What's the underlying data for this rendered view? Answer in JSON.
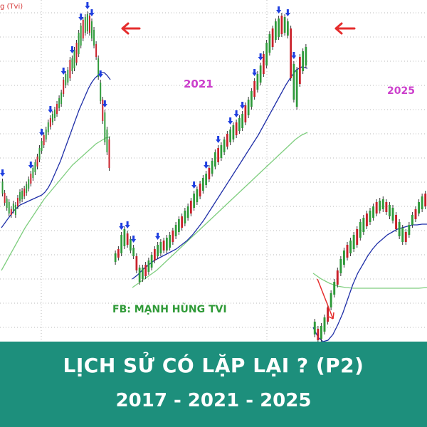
{
  "author_label": "g (Tvi)",
  "watermark": "FB: MẠNH HÙNG TVI",
  "banner": {
    "title": "LỊCH SỬ CÓ LẶP LẠI ? (P2)",
    "subtitle": "2017 - 2021 - 2025",
    "background": "#1d8f7c"
  },
  "colors": {
    "candle_up": "#2e9a3a",
    "candle_down": "#c9202a",
    "ma_short": "#1f2fa8",
    "ma_long": "#7fce7f",
    "marker_arrow": "#1f3fe0",
    "pointer_arrow": "#e52d2d",
    "year_label": "#cc3fcc",
    "grid": "#b8b8b8"
  },
  "chart_data": [
    {
      "type": "candlestick",
      "label": "",
      "title": "",
      "series": [
        {
          "name": "price",
          "values": [
            [
              272,
              255
            ],
            [
              285,
              271
            ],
            [
              292,
              279
            ],
            [
              300,
              284
            ],
            [
              302,
              294
            ],
            [
              296,
              286
            ],
            [
              302,
              288
            ],
            [
              290,
              278
            ],
            [
              282,
              270
            ],
            [
              280,
              268
            ],
            [
              276,
              265
            ],
            [
              271,
              259
            ],
            [
              265,
              252
            ],
            [
              258,
              244
            ],
            [
              250,
              236
            ],
            [
              242,
              228
            ],
            [
              234,
              220
            ],
            [
              224,
              208
            ],
            [
              212,
              198
            ],
            [
              204,
              190
            ],
            [
              196,
              182
            ],
            [
              186,
              172
            ],
            [
              178,
              166
            ],
            [
              172,
              160
            ],
            [
              166,
              154
            ],
            [
              160,
              146
            ],
            [
              152,
              138
            ],
            [
              146,
              130
            ],
            [
              132,
              112
            ],
            [
              120,
              104
            ],
            [
              116,
              98
            ],
            [
              110,
              84
            ],
            [
              100,
              82
            ],
            [
              96,
              70
            ],
            [
              88,
              60
            ],
            [
              76,
              46
            ],
            [
              64,
              36
            ],
            [
              54,
              28
            ],
            [
              46,
              24
            ],
            [
              44,
              20
            ],
            [
              46,
              22
            ],
            [
              54,
              30
            ],
            [
              64,
              42
            ],
            [
              80,
              62
            ],
            [
              108,
              82
            ],
            [
              142,
              116
            ],
            [
              170,
              140
            ],
            [
              200,
              158
            ],
            [
              214,
              182
            ],
            [
              236,
              196
            ]
          ]
        },
        {
          "name": "ma_short",
          "values": [
            320,
            314,
            308,
            302,
            296,
            292,
            288,
            286,
            284,
            282,
            280,
            278,
            276,
            274,
            270,
            264,
            256,
            246,
            236,
            226,
            214,
            202,
            190,
            178,
            166,
            154,
            144,
            134,
            124,
            116,
            110,
            106,
            102,
            102,
            106,
            112
          ]
        },
        {
          "name": "ma_long",
          "values": [
            380,
            368,
            356,
            344,
            332,
            320,
            310,
            300,
            290,
            280,
            272,
            264,
            256,
            248,
            240,
            232,
            226,
            220,
            214,
            208,
            202,
            198,
            194,
            192
          ]
        }
      ]
    },
    {
      "type": "candlestick",
      "label": "2021",
      "title": "",
      "series": [
        {
          "name": "price",
          "values": [
            [
              368,
              356
            ],
            [
              362,
              350
            ],
            [
              356,
              330
            ],
            [
              346,
              322
            ],
            [
              344,
              328
            ],
            [
              352,
              336
            ],
            [
              360,
              348
            ],
            [
              380,
              360
            ],
            [
              396,
              376
            ],
            [
              392,
              376
            ],
            [
              388,
              372
            ],
            [
              382,
              366
            ],
            [
              376,
              358
            ],
            [
              366,
              350
            ],
            [
              360,
              344
            ],
            [
              356,
              340
            ],
            [
              352,
              338
            ],
            [
              352,
              334
            ],
            [
              348,
              330
            ],
            [
              340,
              324
            ],
            [
              332,
              316
            ],
            [
              326,
              308
            ],
            [
              320,
              304
            ],
            [
              314,
              296
            ],
            [
              306,
              290
            ],
            [
              300,
              282
            ],
            [
              292,
              272
            ],
            [
              284,
              266
            ],
            [
              276,
              258
            ],
            [
              268,
              250
            ],
            [
              260,
              244
            ],
            [
              252,
              236
            ],
            [
              244,
              226
            ],
            [
              234,
              214
            ],
            [
              228,
              208
            ],
            [
              222,
              204
            ],
            [
              214,
              196
            ],
            [
              206,
              188
            ],
            [
              200,
              182
            ],
            [
              196,
              176
            ],
            [
              190,
              172
            ],
            [
              184,
              166
            ],
            [
              180,
              160
            ],
            [
              172,
              148
            ],
            [
              162,
              140
            ],
            [
              150,
              128
            ],
            [
              136,
              114
            ],
            [
              126,
              104
            ],
            [
              116,
              92
            ],
            [
              104,
              76
            ],
            [
              92,
              60
            ],
            [
              74,
              48
            ],
            [
              66,
              40
            ],
            [
              56,
              30
            ],
            [
              52,
              26
            ],
            [
              48,
              22
            ],
            [
              46,
              24
            ],
            [
              50,
              30
            ],
            [
              110,
              40
            ],
            [
              140,
              90
            ],
            [
              150,
              98
            ],
            [
              118,
              80
            ],
            [
              100,
              72
            ],
            [
              92,
              66
            ]
          ]
        },
        {
          "name": "ma_short",
          "values": [
            392,
            386,
            378,
            372,
            366,
            362,
            358,
            354,
            350,
            344,
            338,
            330,
            320,
            310,
            298,
            286,
            274,
            262,
            250,
            238,
            226,
            214,
            202,
            190,
            176,
            162,
            148,
            134,
            120,
            108,
            98,
            94,
            96
          ]
        },
        {
          "name": "ma_long",
          "values": [
            404,
            398,
            392,
            386,
            380,
            372,
            364,
            356,
            348,
            340,
            332,
            324,
            316,
            308,
            300,
            292,
            284,
            276,
            268,
            260,
            252,
            244,
            236,
            228,
            220,
            212,
            204,
            196,
            190,
            186
          ]
        }
      ]
    },
    {
      "type": "candlestick",
      "label": "2025",
      "title": "",
      "series": [
        {
          "name": "price",
          "values": [
            [
              470,
              452
            ],
            [
              478,
              462
            ],
            [
              476,
              458
            ],
            [
              466,
              446
            ],
            [
              452,
              432
            ],
            [
              432,
              412
            ],
            [
              414,
              396
            ],
            [
              400,
              380
            ],
            [
              384,
              364
            ],
            [
              372,
              352
            ],
            [
              362,
              344
            ],
            [
              356,
              338
            ],
            [
              350,
              330
            ],
            [
              344,
              322
            ],
            [
              334,
              312
            ],
            [
              326,
              306
            ],
            [
              318,
              300
            ],
            [
              312,
              296
            ],
            [
              306,
              290
            ],
            [
              300,
              284
            ],
            [
              296,
              282
            ],
            [
              294,
              280
            ],
            [
              298,
              284
            ],
            [
              304,
              288
            ],
            [
              310,
              292
            ],
            [
              322,
              302
            ],
            [
              332,
              312
            ],
            [
              340,
              320
            ],
            [
              340,
              326
            ],
            [
              330,
              316
            ],
            [
              316,
              302
            ],
            [
              308,
              294
            ],
            [
              300,
              284
            ],
            [
              294,
              276
            ],
            [
              290,
              272
            ]
          ]
        },
        {
          "name": "ma_short",
          "values": [
            460,
            474,
            480,
            478,
            470,
            456,
            440,
            420,
            400,
            384,
            372,
            360,
            350,
            342,
            336,
            330,
            326,
            322,
            320,
            318,
            316,
            316,
            315,
            315
          ]
        },
        {
          "name": "ma_long",
          "values": [
            384,
            392,
            398,
            402,
            404,
            405,
            405,
            405,
            405,
            405,
            405,
            405,
            405,
            405,
            404
          ]
        }
      ]
    }
  ]
}
